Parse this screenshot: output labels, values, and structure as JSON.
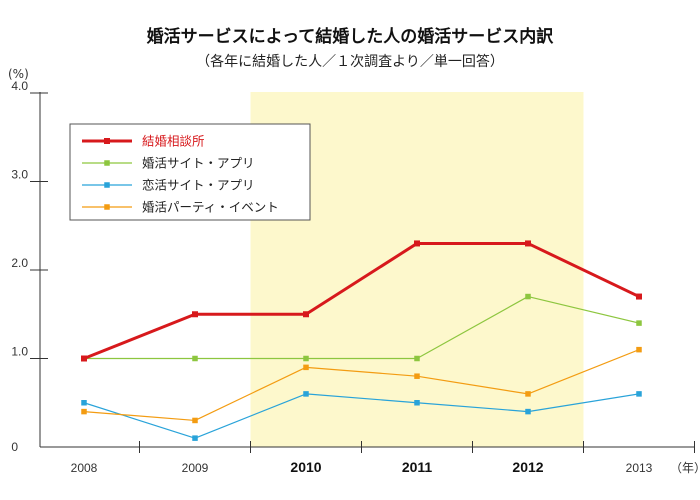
{
  "chart_data": {
    "type": "line",
    "title": "婚活サービスによって結婚した人の婚活サービス内訳",
    "subtitle": "（各年に結婚した人／１次調査より／単一回答）",
    "y_unit_label": "(%)",
    "x_unit_label": "（年）",
    "x": [
      "2008",
      "2009",
      "2010",
      "2011",
      "2012",
      "2013"
    ],
    "bold_years": [
      "2010",
      "2011",
      "2012"
    ],
    "highlight_range": [
      "2010",
      "2012"
    ],
    "ylim": [
      0,
      4
    ],
    "yticks": [
      {
        "value": 0,
        "label": "0"
      },
      {
        "value": 1,
        "label": "1.0"
      },
      {
        "value": 2,
        "label": "2.0"
      },
      {
        "value": 3,
        "label": "3.0"
      },
      {
        "value": 4,
        "label": "4.0"
      }
    ],
    "grid": false,
    "legend_position": "top-left",
    "series": [
      {
        "name": "結婚相談所",
        "color": "#d7191c",
        "values": [
          1.0,
          1.5,
          1.5,
          2.3,
          2.3,
          1.7
        ],
        "highlight": true
      },
      {
        "name": "婚活サイト・アプリ",
        "color": "#8dc63f",
        "values": [
          1.0,
          1.0,
          1.0,
          1.0,
          1.7,
          1.4
        ]
      },
      {
        "name": "恋活サイト・アプリ",
        "color": "#29a3d9",
        "values": [
          0.5,
          0.1,
          0.6,
          0.5,
          0.4,
          0.6
        ]
      },
      {
        "name": "婚活パーティ・イベント",
        "color": "#f39c12",
        "values": [
          0.4,
          0.3,
          0.9,
          0.8,
          0.6,
          1.1
        ]
      }
    ]
  },
  "colors": {
    "highlight_band": "#fdf8cc",
    "axis": "#333333"
  }
}
